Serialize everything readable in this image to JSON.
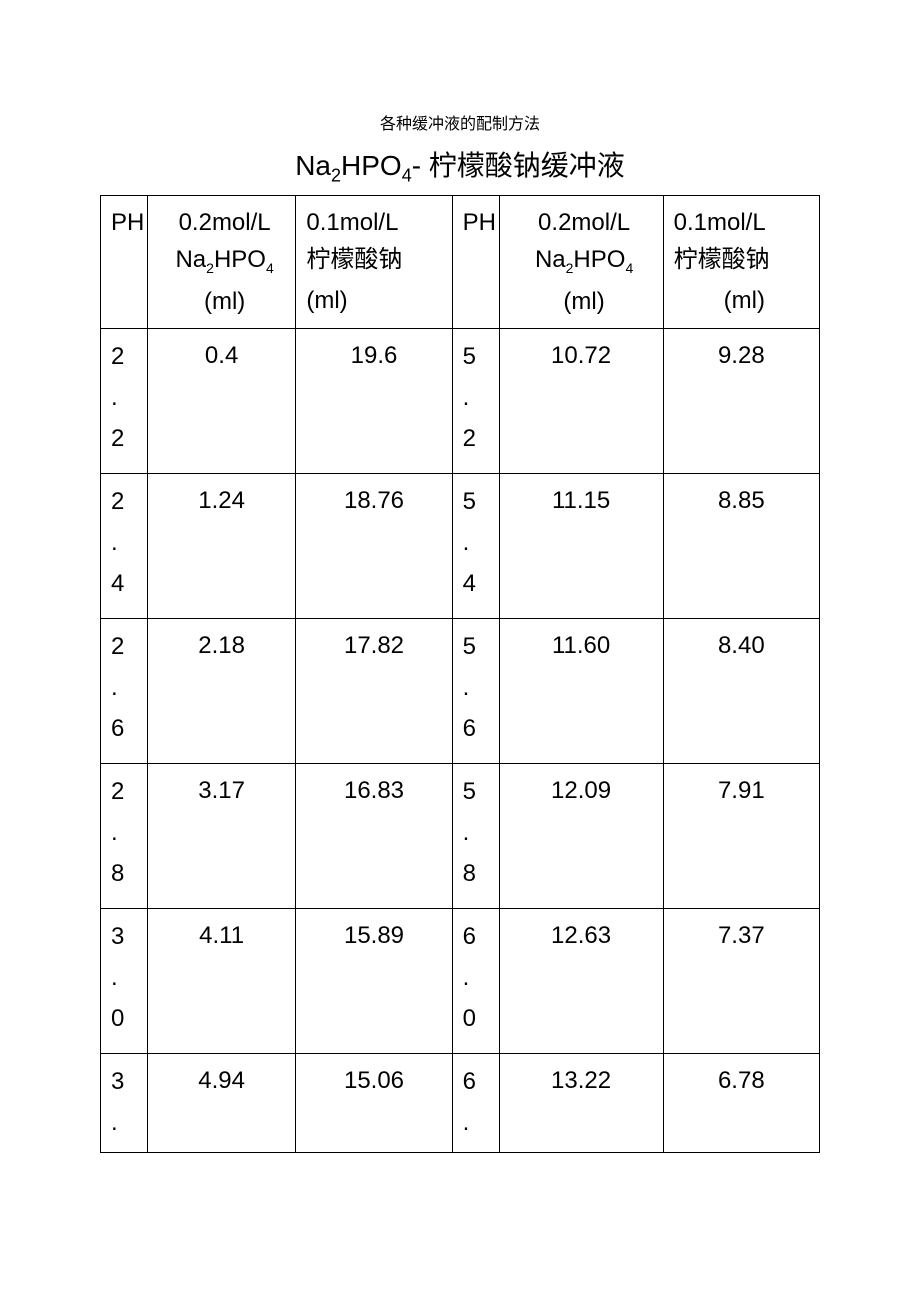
{
  "supertitle": "各种缓冲液的配制方法",
  "title_prefix": "Na",
  "title_sub1": "2",
  "title_mid": "HPO",
  "title_sub2": "4",
  "title_suffix": "- 柠檬酸钠缓冲液",
  "headers": {
    "ph1": "PH",
    "a_line1_pre": "0.2mol/L",
    "a_line2_pre": "Na",
    "a_line2_sub1": "2",
    "a_line2_mid": "HPO",
    "a_line2_sub2": "4",
    "a_unit": "(ml)",
    "b_line1": "0.1mol/L",
    "b_line2": "柠檬酸钠",
    "b_unit": "(ml)",
    "ph2": "PH",
    "c_line1_pre": "0.2mol/L",
    "c_line2_pre": "Na",
    "c_line2_sub1": "2",
    "c_line2_mid": "HPO",
    "c_line2_sub2": "4",
    "c_unit": "(ml)",
    "d_line1": "0.1mol/L",
    "d_line2": "柠檬酸钠",
    "d_unit": "(ml)"
  },
  "rows": [
    {
      "ph1": "2.2",
      "a": "0.4",
      "b": "19.6",
      "ph2": "5.2",
      "c": "10.72",
      "d": "9.28"
    },
    {
      "ph1": "2.4",
      "a": "1.24",
      "b": "18.76",
      "ph2": "5.4",
      "c": "11.15",
      "d": "8.85"
    },
    {
      "ph1": "2.6",
      "a": "2.18",
      "b": "17.82",
      "ph2": "5.6",
      "c": "11.60",
      "d": "8.40"
    },
    {
      "ph1": "2.8",
      "a": "3.17",
      "b": "16.83",
      "ph2": "5.8",
      "c": "12.09",
      "d": "7.91"
    },
    {
      "ph1": "3.0",
      "a": "4.11",
      "b": "15.89",
      "ph2": "6.0",
      "c": "12.63",
      "d": "7.37"
    },
    {
      "ph1": "3.",
      "a": "4.94",
      "b": "15.06",
      "ph2": "6.",
      "c": "13.22",
      "d": "6.78"
    }
  ],
  "style": {
    "page_bg": "#ffffff",
    "text_color": "#000000",
    "border_color": "#000000",
    "title_fontsize": 28,
    "body_fontsize": 24,
    "supertitle_fontsize": 16,
    "row_height_full": 145,
    "row_height_last": 95,
    "col_widths_pct": [
      6,
      19,
      20,
      6,
      21,
      20
    ]
  }
}
